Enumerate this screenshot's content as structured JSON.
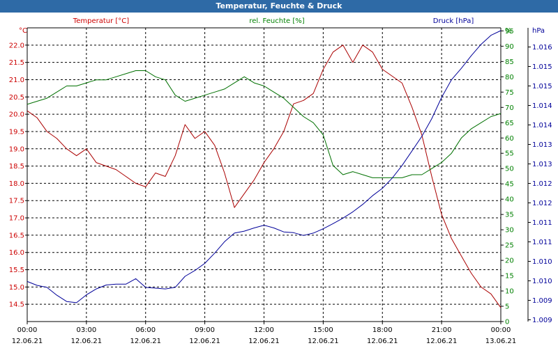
{
  "window": {
    "title": "Temperatur, Feuchte & Druck"
  },
  "chart_data": {
    "type": "line",
    "title": "Temperatur, Feuchte & Druck",
    "x_ticks": [
      {
        "time": "00:00",
        "date": "12.06.21"
      },
      {
        "time": "03:00",
        "date": "12.06.21"
      },
      {
        "time": "06:00",
        "date": "12.06.21"
      },
      {
        "time": "09:00",
        "date": "12.06.21"
      },
      {
        "time": "12:00",
        "date": "12.06.21"
      },
      {
        "time": "15:00",
        "date": "12.06.21"
      },
      {
        "time": "18:00",
        "date": "12.06.21"
      },
      {
        "time": "21:00",
        "date": "12.06.21"
      },
      {
        "time": "00:00",
        "date": "13.06.21"
      }
    ],
    "x_range_hours": [
      0,
      24
    ],
    "grid": true,
    "axes": {
      "temperature": {
        "side": "left",
        "unit": "°C",
        "color": "#cc0000",
        "range": [
          14.0,
          22.5
        ],
        "ticks": [
          "14.5",
          "15.0",
          "15.5",
          "16.0",
          "16.5",
          "17.0",
          "17.5",
          "18.0",
          "18.5",
          "19.0",
          "19.5",
          "20.0",
          "20.5",
          "21.0",
          "21.5",
          "22.0"
        ]
      },
      "humidity": {
        "side": "right-inner",
        "unit": "%",
        "color": "#008000",
        "range": [
          0,
          96
        ],
        "ticks": [
          "0",
          "5",
          "10",
          "15",
          "20",
          "25",
          "30",
          "35",
          "40",
          "45",
          "50",
          "55",
          "60",
          "65",
          "70",
          "75",
          "80",
          "85",
          "90",
          "95"
        ]
      },
      "pressure": {
        "side": "right-outer",
        "unit": "hPa",
        "color": "#000099",
        "range": [
          1008.7,
          1016.17
        ],
        "ticks": [
          "1.009",
          "1.009",
          "1.010",
          "1.010",
          "1.011",
          "1.011",
          "1.012",
          "1.012",
          "1.013",
          "1.013",
          "1.014",
          "1.014",
          "1.015",
          "1.015",
          "1.016"
        ]
      }
    },
    "series": [
      {
        "name": "Temperatur [°C]",
        "axis": "temperature",
        "color": "#aa0000",
        "x": [
          0,
          0.5,
          1,
          1.5,
          2,
          2.5,
          3,
          3.5,
          4,
          4.5,
          5,
          5.5,
          6,
          6.5,
          7,
          7.5,
          8,
          8.5,
          9,
          9.5,
          10,
          10.5,
          11,
          11.5,
          12,
          12.5,
          13,
          13.5,
          14,
          14.5,
          15,
          15.5,
          16,
          16.5,
          17,
          17.5,
          18,
          18.5,
          19,
          19.5,
          20,
          20.5,
          21,
          21.5,
          22,
          22.5,
          23,
          23.5,
          24
        ],
        "values": [
          20.1,
          19.9,
          19.5,
          19.3,
          19.0,
          18.8,
          19.0,
          18.6,
          18.5,
          18.4,
          18.2,
          18.0,
          17.9,
          18.3,
          18.2,
          18.8,
          19.7,
          19.3,
          19.5,
          19.1,
          18.3,
          17.3,
          17.7,
          18.1,
          18.6,
          19.0,
          19.5,
          20.3,
          20.4,
          20.6,
          21.3,
          21.8,
          22.0,
          21.5,
          22.0,
          21.8,
          21.3,
          21.1,
          20.9,
          20.2,
          19.4,
          18.2,
          17.1,
          16.4,
          15.9,
          15.4,
          15.0,
          14.8,
          14.4
        ]
      },
      {
        "name": "rel. Feuchte [%]",
        "axis": "humidity",
        "color": "#007000",
        "x": [
          0,
          0.5,
          1,
          1.5,
          2,
          2.5,
          3,
          3.5,
          4,
          4.5,
          5,
          5.5,
          6,
          6.5,
          7,
          7.5,
          8,
          8.5,
          9,
          9.5,
          10,
          10.5,
          11,
          11.5,
          12,
          12.5,
          13,
          13.5,
          14,
          14.5,
          15,
          15.5,
          16,
          16.5,
          17,
          17.5,
          18,
          18.5,
          19,
          19.5,
          20,
          20.5,
          21,
          21.5,
          22,
          22.5,
          23,
          23.5,
          24
        ],
        "values": [
          71,
          72,
          73,
          75,
          77,
          77,
          78,
          79,
          79,
          80,
          81,
          82,
          82,
          80,
          79,
          74,
          72,
          73,
          74,
          75,
          76,
          78,
          80,
          78,
          77,
          75,
          73,
          70,
          67,
          65,
          61,
          51,
          48,
          49,
          48,
          47,
          47,
          47,
          47,
          48,
          48,
          50,
          52,
          55,
          60,
          63,
          65,
          67,
          68
        ]
      },
      {
        "name": "Druck [hPa]",
        "axis": "pressure",
        "color": "#000099",
        "x": [
          0,
          0.5,
          1,
          1.5,
          2,
          2.5,
          3,
          3.5,
          4,
          4.5,
          5,
          5.5,
          6,
          6.5,
          7,
          7.5,
          8,
          8.5,
          9,
          9.5,
          10,
          10.5,
          11,
          11.5,
          12,
          12.5,
          13,
          13.5,
          14,
          14.5,
          15,
          15.5,
          16,
          16.5,
          17,
          17.5,
          18,
          18.5,
          19,
          19.5,
          20,
          20.5,
          21,
          21.5,
          22,
          22.5,
          23,
          23.5,
          24
        ],
        "values": [
          1009.72,
          1009.62,
          1009.57,
          1009.37,
          1009.21,
          1009.18,
          1009.38,
          1009.53,
          1009.63,
          1009.65,
          1009.65,
          1009.79,
          1009.57,
          1009.55,
          1009.53,
          1009.57,
          1009.85,
          1010.0,
          1010.18,
          1010.44,
          1010.73,
          1010.95,
          1011.0,
          1011.08,
          1011.15,
          1011.08,
          1010.98,
          1010.96,
          1010.89,
          1010.95,
          1011.06,
          1011.19,
          1011.33,
          1011.49,
          1011.68,
          1011.9,
          1012.09,
          1012.35,
          1012.67,
          1013.04,
          1013.41,
          1013.86,
          1014.4,
          1014.85,
          1015.14,
          1015.46,
          1015.75,
          1015.98,
          1016.1
        ]
      }
    ]
  }
}
